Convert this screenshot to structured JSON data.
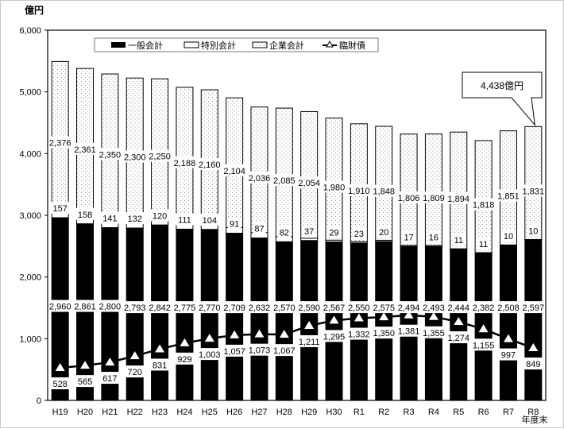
{
  "chart_data": {
    "type": "bar",
    "subtype": "stacked_bar_with_line",
    "title": "",
    "ylabel": "億円",
    "xlabel": "年度末",
    "ylim": [
      0,
      6000
    ],
    "yticks": [
      0,
      1000,
      2000,
      3000,
      4000,
      5000,
      6000
    ],
    "ytick_labels": [
      "0",
      "1,000",
      "2,000",
      "3,000",
      "4,000",
      "5,000",
      "6,000"
    ],
    "grid": false,
    "legend_position": "top-inside",
    "categories": [
      "H19",
      "H20",
      "H21",
      "H22",
      "H23",
      "H24",
      "H25",
      "H26",
      "H27",
      "H28",
      "H29",
      "H30",
      "R1",
      "R2",
      "R3",
      "R4",
      "R5",
      "R6",
      "R7",
      "R8"
    ],
    "series": [
      {
        "name": "一般会計",
        "kind": "bar",
        "style": "solid-black",
        "values": [
          2960,
          2861,
          2800,
          2793,
          2842,
          2775,
          2770,
          2709,
          2632,
          2570,
          2590,
          2567,
          2550,
          2575,
          2494,
          2493,
          2444,
          2382,
          2508,
          2597
        ],
        "labels": [
          "2,960",
          "2,861",
          "2,800",
          "2,793",
          "2,842",
          "2,775",
          "2,770",
          "2,709",
          "2,632",
          "2,570",
          "2,590",
          "2,567",
          "2,550",
          "2,575",
          "2,494",
          "2,493",
          "2,444",
          "2,382",
          "2,508",
          "2,597"
        ]
      },
      {
        "name": "特別会計",
        "kind": "bar",
        "style": "white",
        "values": [
          157,
          158,
          141,
          132,
          120,
          111,
          104,
          91,
          87,
          82,
          37,
          29,
          23,
          20,
          17,
          16,
          11,
          11,
          10,
          10
        ],
        "labels": [
          "157",
          "158",
          "141",
          "132",
          "120",
          "111",
          "104",
          "91",
          "87",
          "82",
          "37",
          "29",
          "23",
          "20",
          "17",
          "16",
          "11",
          "11",
          "10",
          "10"
        ]
      },
      {
        "name": "企業会計",
        "kind": "bar",
        "style": "dotted",
        "values": [
          2376,
          2361,
          2350,
          2300,
          2250,
          2188,
          2160,
          2104,
          2036,
          2085,
          2054,
          1980,
          1910,
          1848,
          1806,
          1809,
          1894,
          1818,
          1851,
          1831
        ],
        "labels": [
          "2,376",
          "2,361",
          "2,350",
          "2,300",
          "2,250",
          "2,188",
          "2,160",
          "2,104",
          "2,036",
          "2,085",
          "2,054",
          "1,980",
          "1,910",
          "1,848",
          "1,806",
          "1,809",
          "1,894",
          "1,818",
          "1,851",
          "1,831"
        ]
      },
      {
        "name": "臨財債",
        "kind": "line",
        "marker": "triangle",
        "values": [
          528,
          565,
          617,
          720,
          831,
          929,
          1003,
          1057,
          1073,
          1067,
          1211,
          1295,
          1332,
          1350,
          1381,
          1355,
          1274,
          1155,
          997,
          849
        ],
        "labels": [
          "528",
          "565",
          "617",
          "720",
          "831",
          "929",
          "1,003",
          "1,057",
          "1,073",
          "1,067",
          "1,211",
          "1,295",
          "1,332",
          "1,350",
          "1,381",
          "1,355",
          "1,274",
          "1,155",
          "997",
          "849"
        ]
      }
    ],
    "annotations": [
      {
        "text": "4,438億円",
        "target_category": "R8",
        "type": "callout"
      }
    ]
  },
  "legend": {
    "items": [
      "一般会計",
      "特別会計",
      "企業会計",
      "臨財債"
    ]
  },
  "axis": {
    "y_unit": "億円",
    "x_unit": "年度末"
  },
  "callout": {
    "text": "4,438億円"
  }
}
